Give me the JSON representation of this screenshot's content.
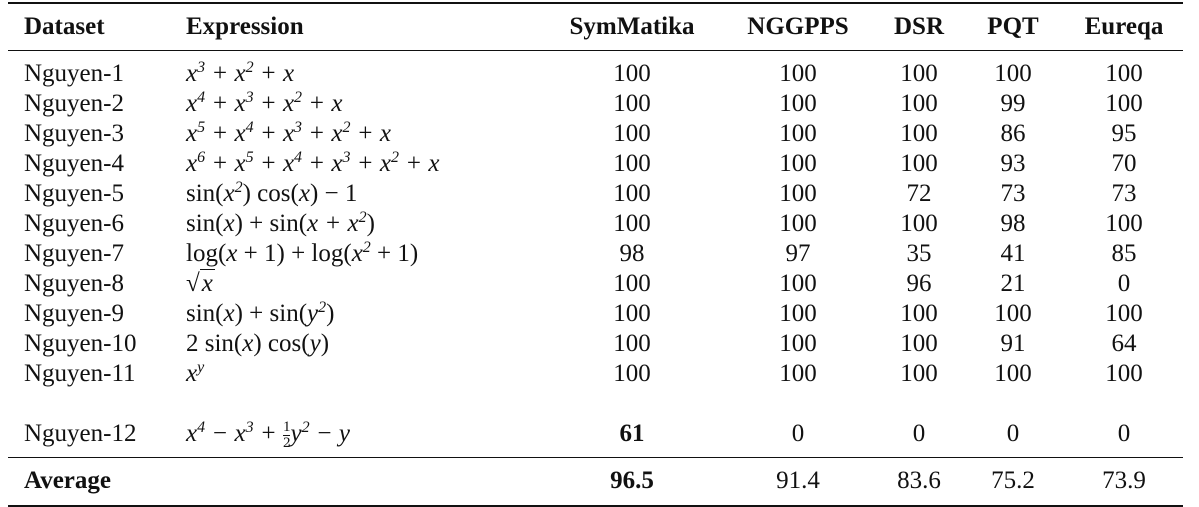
{
  "table": {
    "headers": [
      "Dataset",
      "Expression",
      "SymMatika",
      "NGGPPS",
      "DSR",
      "PQT",
      "Eureqa"
    ],
    "rows": [
      {
        "dataset": "Nguyen-1",
        "values": [
          "100",
          "100",
          "100",
          "100",
          "100"
        ]
      },
      {
        "dataset": "Nguyen-2",
        "values": [
          "100",
          "100",
          "100",
          "99",
          "100"
        ]
      },
      {
        "dataset": "Nguyen-3",
        "values": [
          "100",
          "100",
          "100",
          "86",
          "95"
        ]
      },
      {
        "dataset": "Nguyen-4",
        "values": [
          "100",
          "100",
          "100",
          "93",
          "70"
        ]
      },
      {
        "dataset": "Nguyen-5",
        "values": [
          "100",
          "100",
          "72",
          "73",
          "73"
        ]
      },
      {
        "dataset": "Nguyen-6",
        "values": [
          "100",
          "100",
          "100",
          "98",
          "100"
        ]
      },
      {
        "dataset": "Nguyen-7",
        "values": [
          "98",
          "97",
          "35",
          "41",
          "85"
        ]
      },
      {
        "dataset": "Nguyen-8",
        "values": [
          "100",
          "100",
          "96",
          "21",
          "0"
        ]
      },
      {
        "dataset": "Nguyen-9",
        "values": [
          "100",
          "100",
          "100",
          "100",
          "100"
        ]
      },
      {
        "dataset": "Nguyen-10",
        "values": [
          "100",
          "100",
          "100",
          "91",
          "64"
        ]
      },
      {
        "dataset": "Nguyen-11",
        "values": [
          "100",
          "100",
          "100",
          "100",
          "100"
        ]
      },
      {
        "dataset": "Nguyen-12",
        "values": [
          "61",
          "0",
          "0",
          "0",
          "0"
        ]
      }
    ],
    "average": {
      "label": "Average",
      "values": [
        "96.5",
        "91.4",
        "83.6",
        "75.2",
        "73.9"
      ]
    },
    "bold_cells": [
      "Nguyen-12:SymMatika",
      "Average:SymMatika"
    ]
  }
}
